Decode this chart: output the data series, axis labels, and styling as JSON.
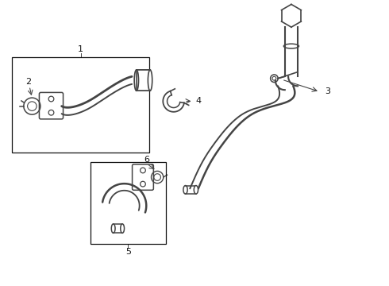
{
  "bg_color": "#ffffff",
  "line_color": "#444444",
  "box_color": "#111111",
  "label_color": "#111111",
  "figsize": [
    4.9,
    3.6
  ],
  "dpi": 100,
  "xlim": [
    0,
    10
  ],
  "ylim": [
    0,
    7.5
  ]
}
